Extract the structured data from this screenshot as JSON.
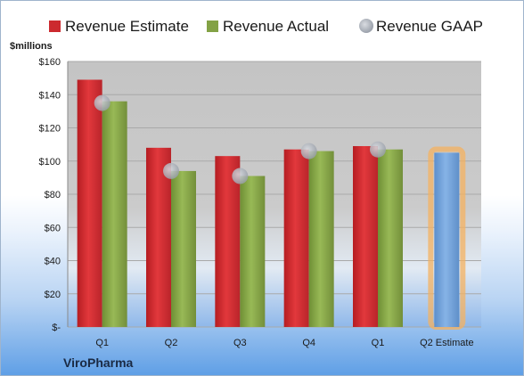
{
  "chart_data": {
    "type": "bar",
    "categories": [
      "Q1",
      "Q2",
      "Q3",
      "Q4",
      "Q1",
      "Q2 Estimate"
    ],
    "series": [
      {
        "name": "Revenue Estimate",
        "color": "#cc2a2f",
        "values": [
          149,
          108,
          103,
          107,
          109,
          null
        ]
      },
      {
        "name": "Revenue Actual",
        "color": "#83a245",
        "values": [
          136,
          94,
          91,
          106,
          107,
          105
        ],
        "highlight_last_color": "#6f9fd6"
      },
      {
        "name": "Revenue GAAP",
        "color": "#a8adb6",
        "marker": "circle",
        "values": [
          135,
          94,
          91,
          106,
          107,
          null
        ]
      }
    ],
    "y_unit_label": "$millions",
    "ylim": [
      0,
      160
    ],
    "ytick_step": 20,
    "yticks": [
      "$-",
      "$20",
      "$40",
      "$60",
      "$80",
      "$100",
      "$120",
      "$140",
      "$160"
    ],
    "grid": true,
    "legend_position": "top",
    "company": "ViroPharma"
  }
}
